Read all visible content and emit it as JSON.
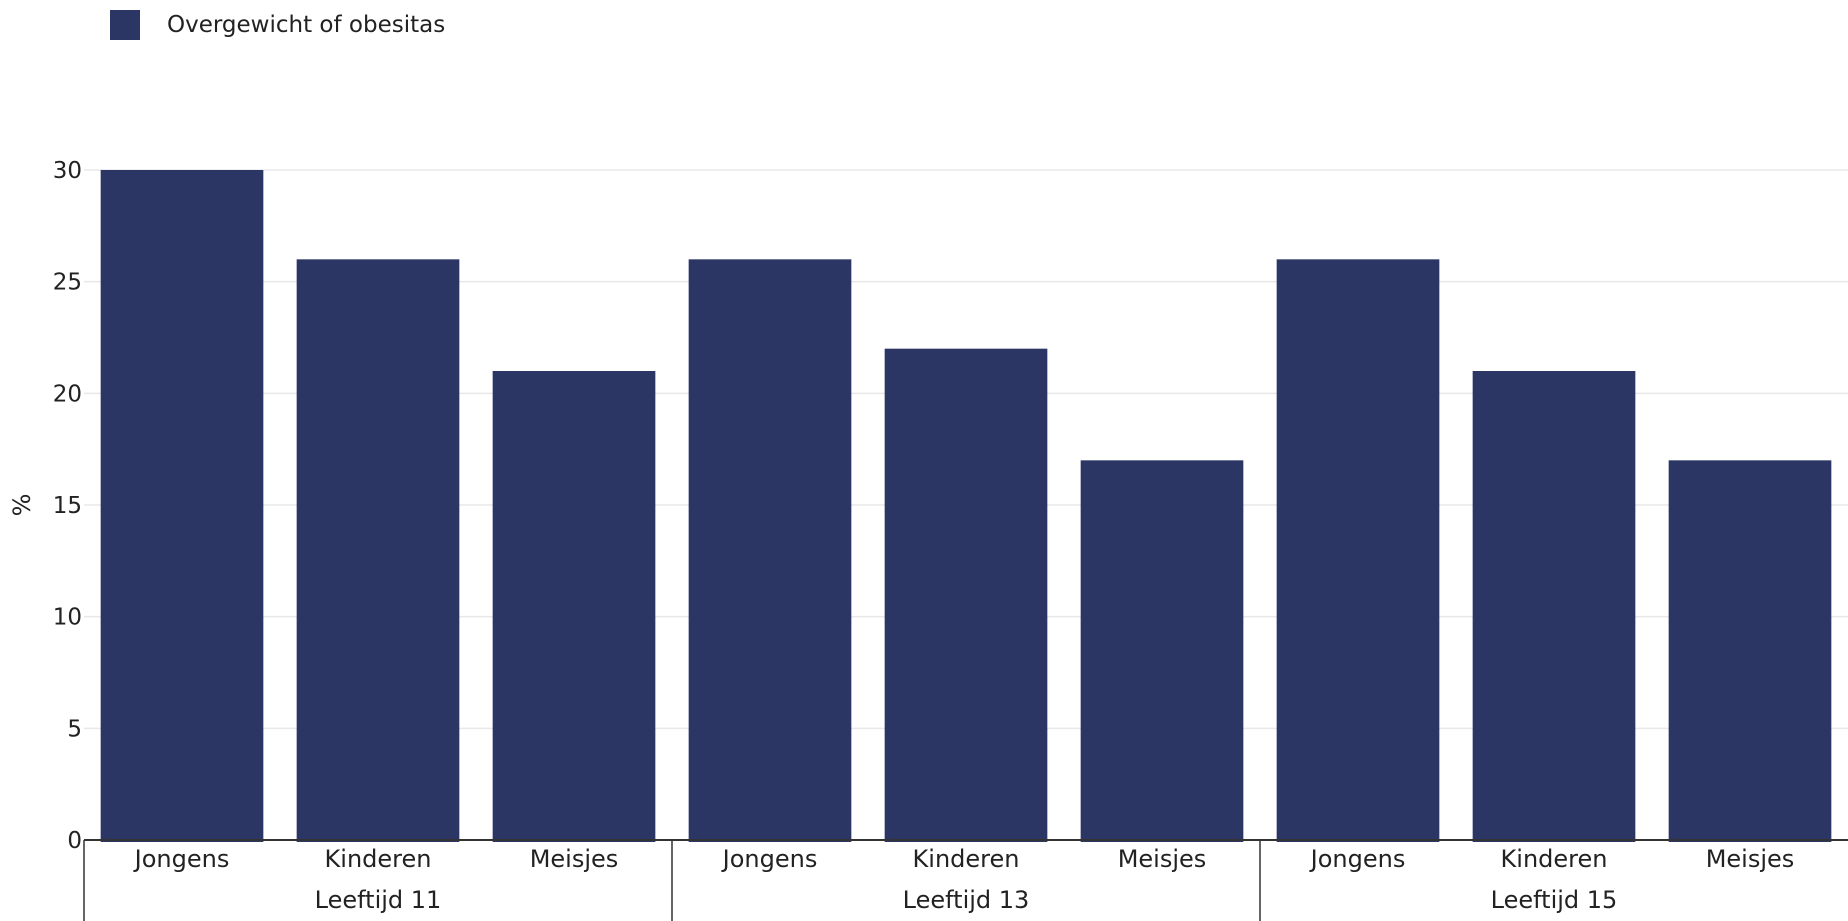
{
  "colors": {
    "bar": "#2b3664",
    "grid": "#e8e8e8",
    "axis": "#333333"
  },
  "chart_data": {
    "type": "bar",
    "title": "",
    "xlabel": "",
    "ylabel": "%",
    "ylim": [
      0,
      30
    ],
    "yticks": [
      0,
      5,
      10,
      15,
      20,
      25,
      30
    ],
    "grid": true,
    "legend_position": "top-left",
    "groups": [
      {
        "label": "Leeftijd 11",
        "categories": [
          "Jongens",
          "Kinderen",
          "Meisjes"
        ]
      },
      {
        "label": "Leeftijd 13",
        "categories": [
          "Jongens",
          "Kinderen",
          "Meisjes"
        ]
      },
      {
        "label": "Leeftijd 15",
        "categories": [
          "Jongens",
          "Kinderen",
          "Meisjes"
        ]
      }
    ],
    "series": [
      {
        "name": "Overgewicht of obesitas",
        "values": [
          30,
          26,
          21,
          26,
          22,
          17,
          26,
          21,
          17
        ]
      }
    ]
  }
}
